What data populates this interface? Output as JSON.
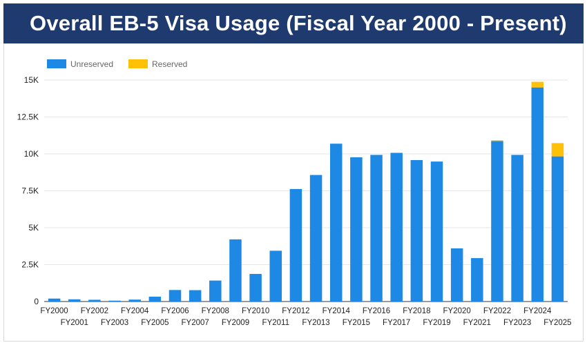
{
  "header": {
    "title": "Overall EB-5 Visa Usage (Fiscal Year 2000 - Present)"
  },
  "colors": {
    "banner": "#1f3a6e",
    "unreserved": "#1e88e5",
    "reserved": "#ffc107",
    "grid": "#e6e6e6",
    "axis": "#333333"
  },
  "chart_data": {
    "type": "bar",
    "stacked": true,
    "title": "",
    "xlabel": "",
    "ylabel": "",
    "legend_position": "top-left",
    "grid": true,
    "ylim": [
      0,
      15000
    ],
    "yticks": [
      {
        "value": 0,
        "label": "0"
      },
      {
        "value": 2500,
        "label": "2.5K"
      },
      {
        "value": 5000,
        "label": "5K"
      },
      {
        "value": 7500,
        "label": "7.5K"
      },
      {
        "value": 10000,
        "label": "10K"
      },
      {
        "value": 12500,
        "label": "12.5K"
      },
      {
        "value": 15000,
        "label": "15K"
      }
    ],
    "categories": [
      "FY2000",
      "FY2001",
      "FY2002",
      "FY2003",
      "FY2004",
      "FY2005",
      "FY2006",
      "FY2007",
      "FY2008",
      "FY2009",
      "FY2010",
      "FY2011",
      "FY2012",
      "FY2013",
      "FY2014",
      "FY2015",
      "FY2016",
      "FY2017",
      "FY2018",
      "FY2019",
      "FY2020",
      "FY2021",
      "FY2022",
      "FY2023",
      "FY2024",
      "FY2025"
    ],
    "series": [
      {
        "name": "Unreserved",
        "color": "#1e88e5",
        "values": [
          200,
          150,
          120,
          60,
          130,
          330,
          780,
          770,
          1420,
          4210,
          1870,
          3440,
          7620,
          8570,
          10690,
          9770,
          9930,
          10070,
          9580,
          9480,
          3600,
          2940,
          10870,
          9930,
          14500,
          9830
        ]
      },
      {
        "name": "Reserved",
        "color": "#ffc107",
        "values": [
          0,
          0,
          0,
          0,
          0,
          0,
          0,
          0,
          0,
          0,
          0,
          0,
          0,
          0,
          0,
          0,
          0,
          0,
          0,
          0,
          0,
          0,
          50,
          0,
          380,
          900
        ]
      }
    ]
  }
}
